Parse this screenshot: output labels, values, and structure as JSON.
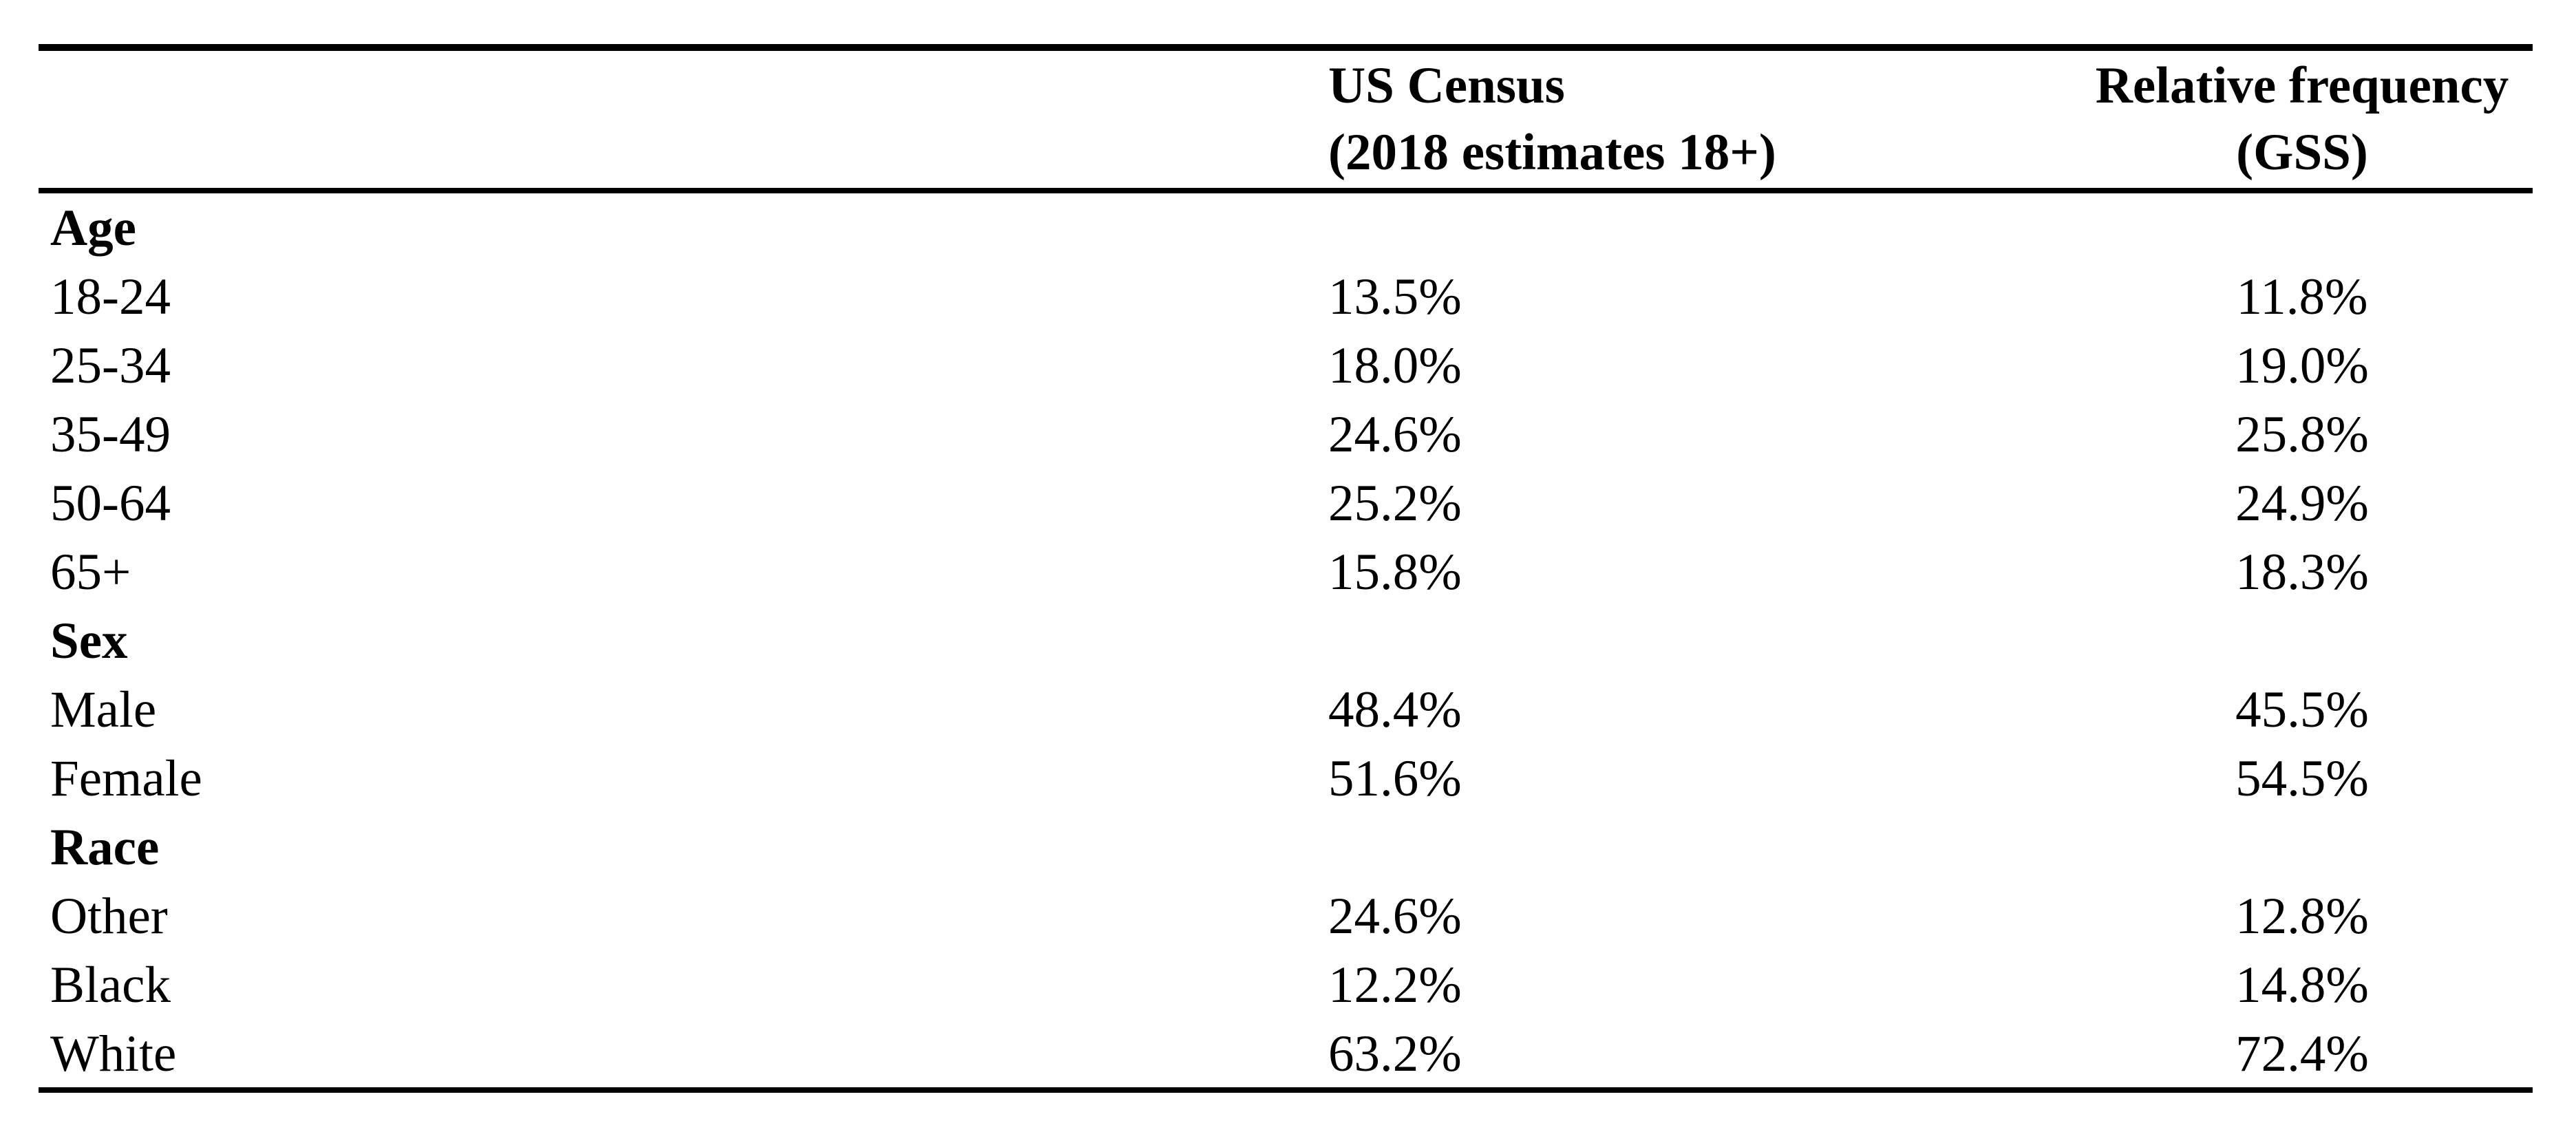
{
  "page": {
    "background_color": "#ffffff",
    "text_color": "#000000",
    "rule_color": "#000000"
  },
  "table": {
    "header": {
      "census_line1": "US Census",
      "census_line2": "(2018 estimates 18+)",
      "gss_line1": "Relative frequency",
      "gss_line2": "(GSS)"
    },
    "rows": [
      {
        "label": "Age",
        "census": "",
        "gss": "",
        "section": true
      },
      {
        "label": "18-24",
        "census": "13.5%",
        "gss": "11.8%"
      },
      {
        "label": "25-34",
        "census": "18.0%",
        "gss": "19.0%"
      },
      {
        "label": "35-49",
        "census": "24.6%",
        "gss": "25.8%"
      },
      {
        "label": "50-64",
        "census": "25.2%",
        "gss": "24.9%"
      },
      {
        "label": "65+",
        "census": "15.8%",
        "gss": "18.3%"
      },
      {
        "label": "Sex",
        "census": "",
        "gss": "",
        "section": true
      },
      {
        "label": "Male",
        "census": "48.4%",
        "gss": "45.5%"
      },
      {
        "label": "Female",
        "census": "51.6%",
        "gss": "54.5%"
      },
      {
        "label": "Race",
        "census": "",
        "gss": "",
        "section": true
      },
      {
        "label": "Other",
        "census": "24.6%",
        "gss": "12.8%"
      },
      {
        "label": "Black",
        "census": "12.2%",
        "gss": "14.8%"
      },
      {
        "label": "White",
        "census": "63.2%",
        "gss": "72.4%"
      }
    ]
  },
  "chart_data": {
    "type": "table",
    "title": "",
    "columns": [
      "Category",
      "US Census (2018 estimates 18+)",
      "Relative frequency (GSS)"
    ],
    "units": "percent",
    "sections": [
      {
        "name": "Age",
        "rows": [
          [
            "18-24",
            13.5,
            11.8
          ],
          [
            "25-34",
            18.0,
            19.0
          ],
          [
            "35-49",
            24.6,
            25.8
          ],
          [
            "50-64",
            25.2,
            24.9
          ],
          [
            "65+",
            15.8,
            18.3
          ]
        ]
      },
      {
        "name": "Sex",
        "rows": [
          [
            "Male",
            48.4,
            45.5
          ],
          [
            "Female",
            51.6,
            54.5
          ]
        ]
      },
      {
        "name": "Race",
        "rows": [
          [
            "Other",
            24.6,
            12.8
          ],
          [
            "Black",
            12.2,
            14.8
          ],
          [
            "White",
            63.2,
            72.4
          ]
        ]
      }
    ]
  }
}
